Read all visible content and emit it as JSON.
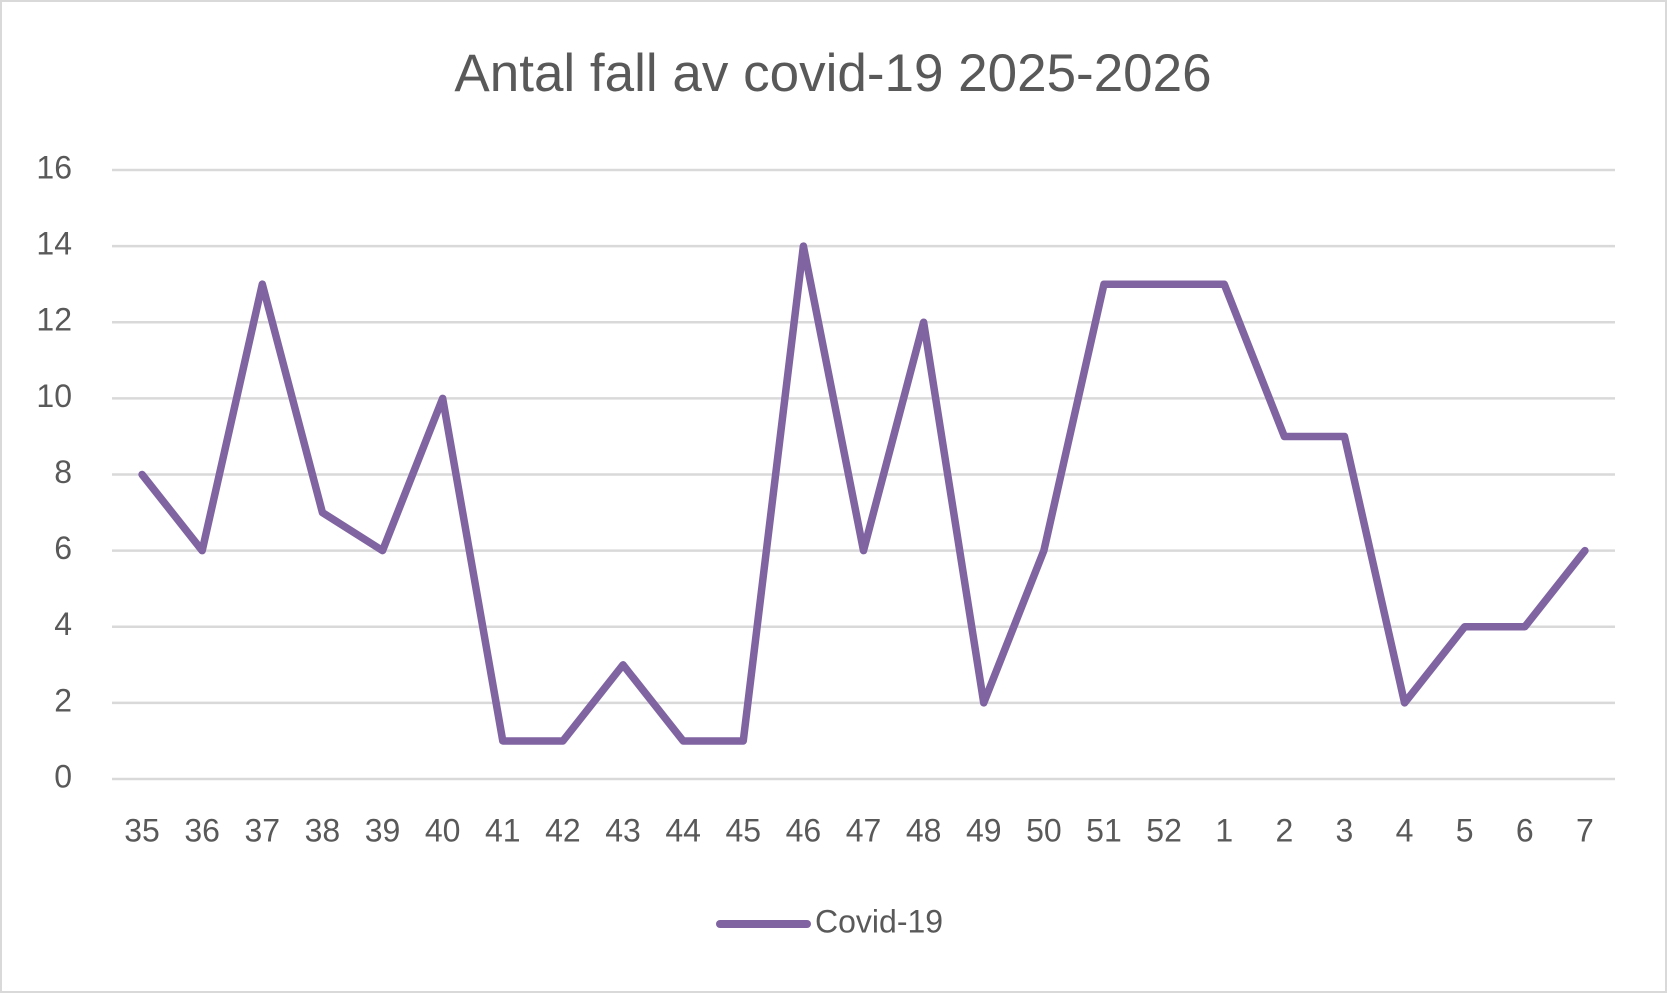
{
  "chart_data": {
    "type": "line",
    "title": "Antal fall av covid-19 2025-2026",
    "categories": [
      "35",
      "36",
      "37",
      "38",
      "39",
      "40",
      "41",
      "42",
      "43",
      "44",
      "45",
      "46",
      "47",
      "48",
      "49",
      "50",
      "51",
      "52",
      "1",
      "2",
      "3",
      "4",
      "5",
      "6",
      "7"
    ],
    "series": [
      {
        "name": "Covid-19",
        "color": "#8064a2",
        "values": [
          8,
          6,
          13,
          7,
          6,
          10,
          1,
          1,
          3,
          1,
          1,
          14,
          6,
          12,
          2,
          6,
          13,
          13,
          13,
          9,
          9,
          2,
          4,
          4,
          6
        ]
      }
    ],
    "ylim": [
      0,
      16
    ],
    "yticks": [
      0,
      2,
      4,
      6,
      8,
      10,
      12,
      14,
      16
    ],
    "grid": true,
    "legend": "bottom"
  }
}
